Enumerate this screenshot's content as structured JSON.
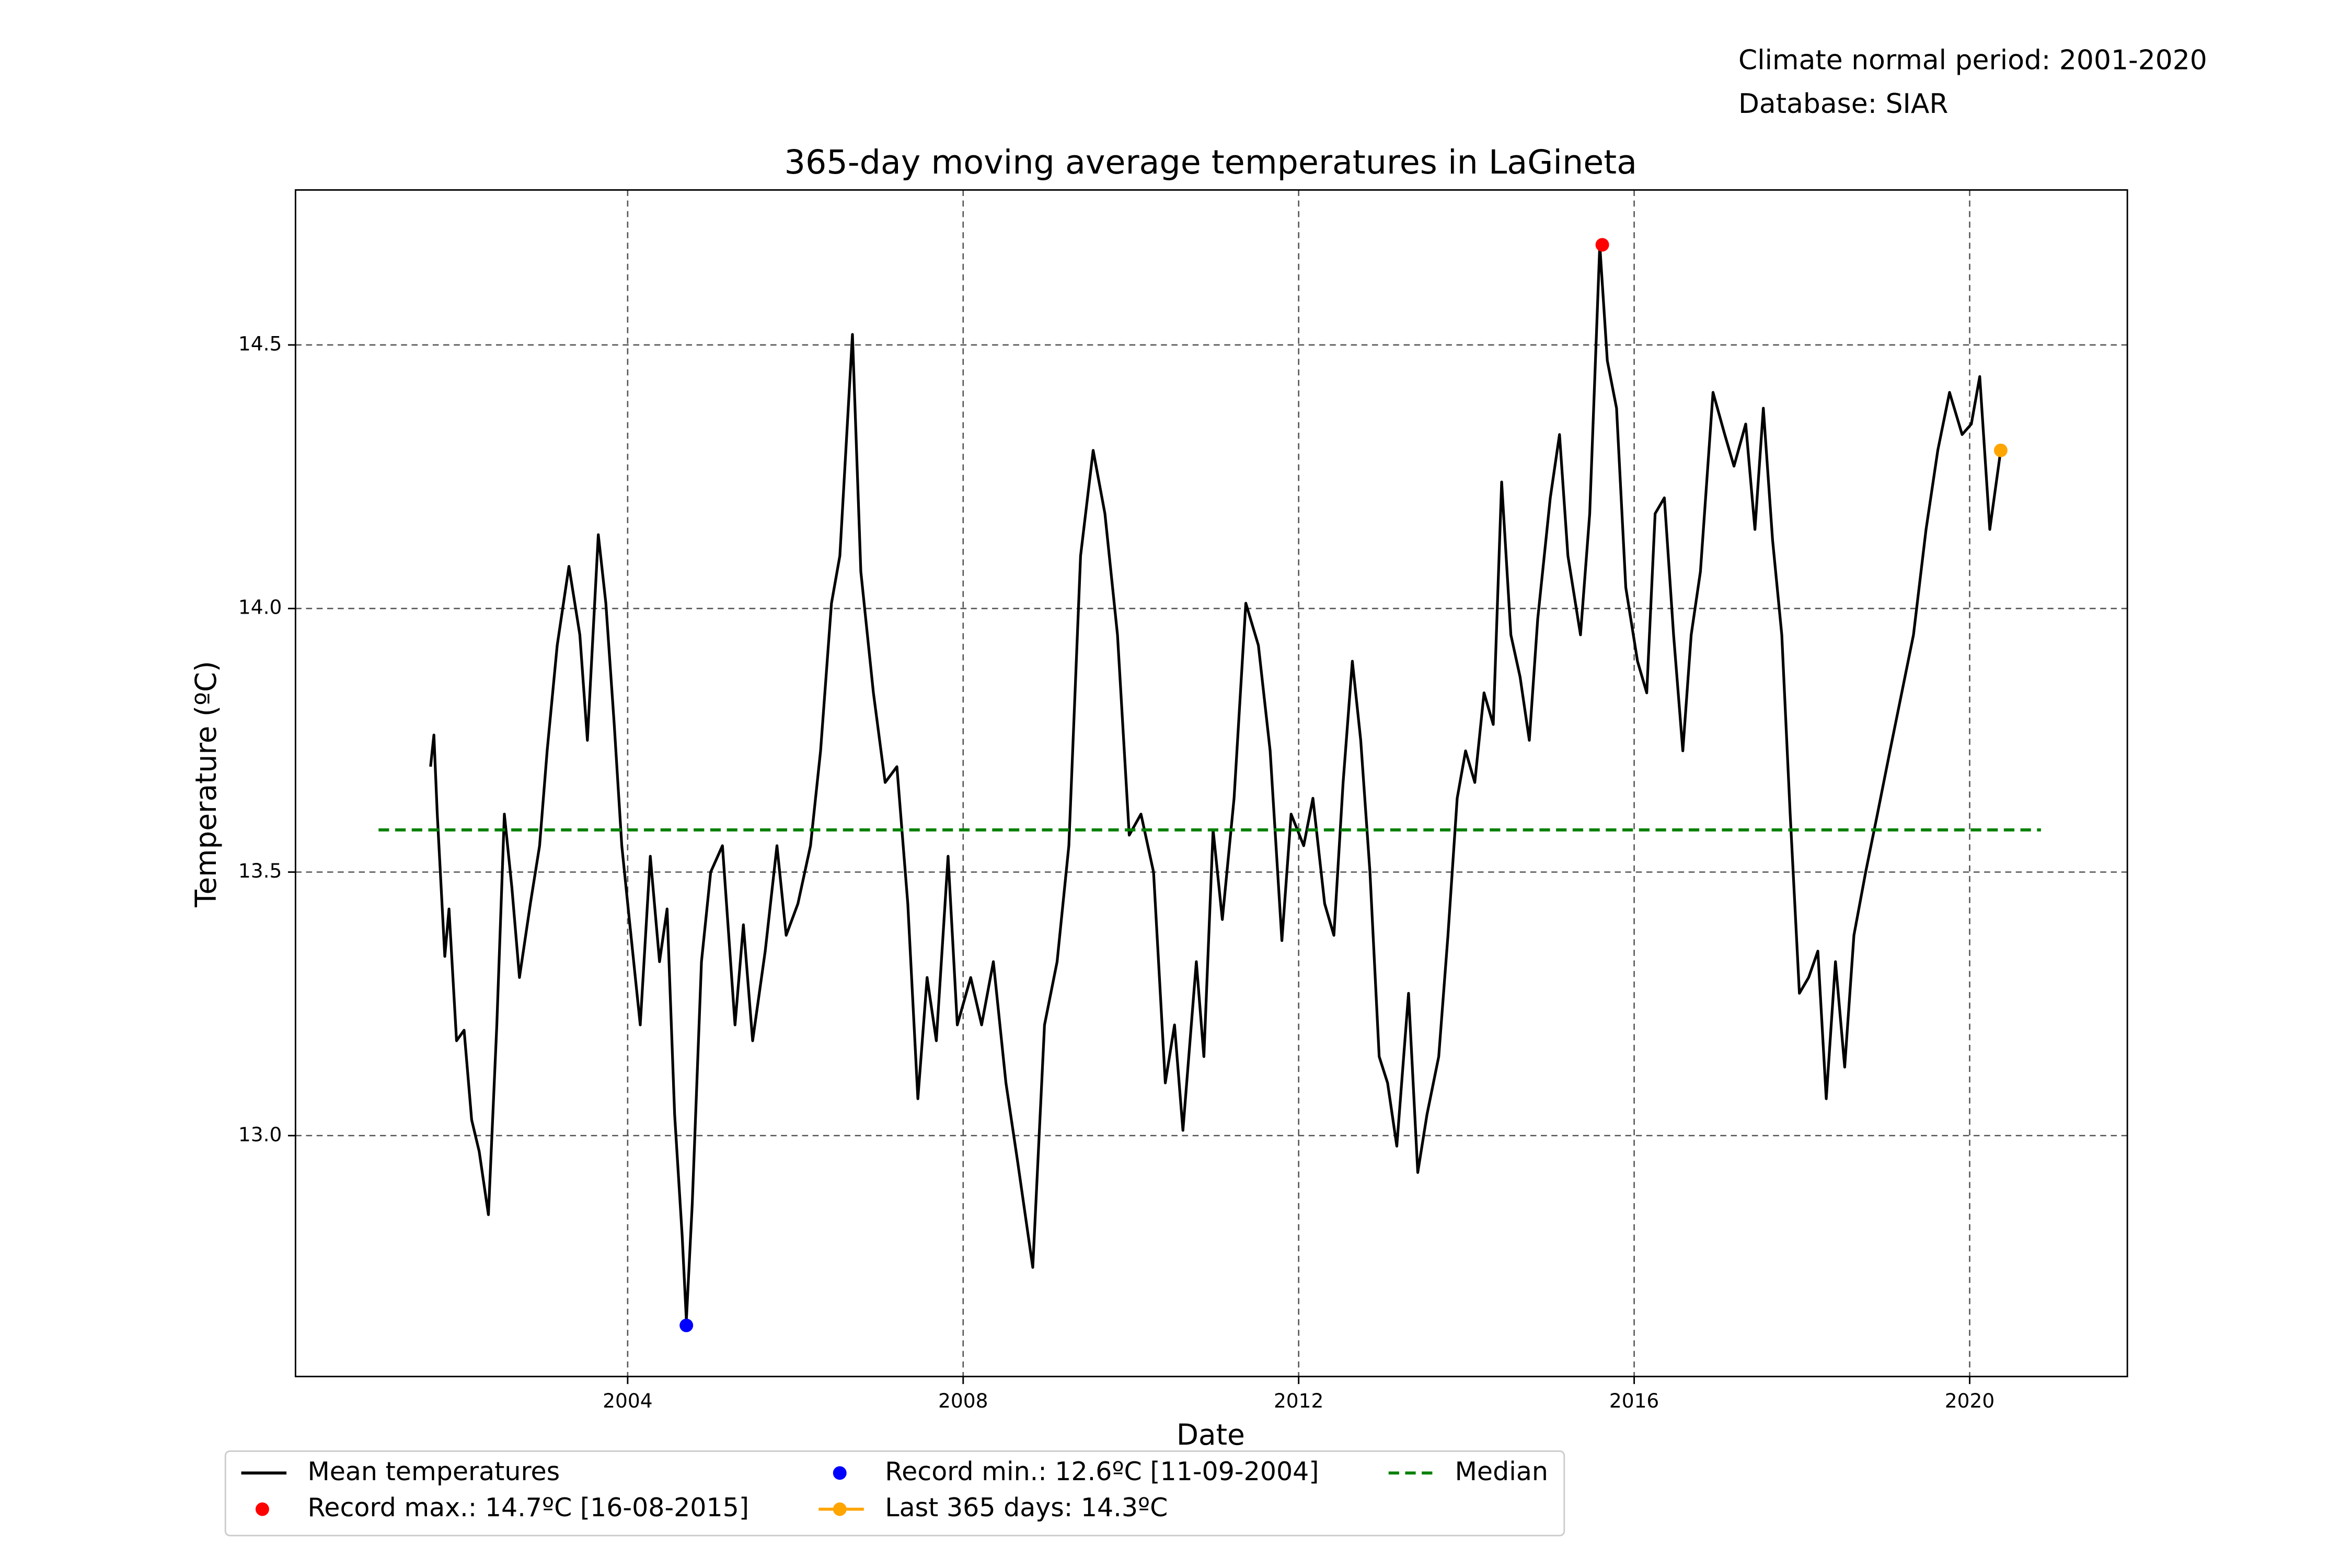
{
  "chart_data": {
    "type": "line",
    "title": "365-day moving average temperatures in LaGineta",
    "annotations": [
      "Climate normal period: 2001-2020",
      "Database: SIAR"
    ],
    "xlabel": "Date",
    "ylabel": "Temperature (ºC)",
    "xlim": [
      2000.04,
      2021.88
    ],
    "xticks": [
      2004,
      2008,
      2012,
      2016,
      2020
    ],
    "ylim": [
      12.543,
      14.794
    ],
    "yticks": [
      {
        "value": 13,
        "label": "13.0"
      },
      13.5,
      {
        "value": 14,
        "label": "14.0"
      },
      14.5
    ],
    "grid": true,
    "x": [
      2001.65,
      2001.69,
      2001.73,
      2001.82,
      2001.87,
      2001.96,
      2002.05,
      2002.14,
      2002.23,
      2002.34,
      2002.44,
      2002.53,
      2002.62,
      2002.71,
      2002.84,
      2002.95,
      2003.04,
      2003.16,
      2003.3,
      2003.43,
      2003.52,
      2003.65,
      2003.74,
      2003.84,
      2003.93,
      2004.02,
      2004.15,
      2004.27,
      2004.38,
      2004.47,
      2004.56,
      2004.65,
      2004.7,
      2004.77,
      2004.88,
      2004.99,
      2005.13,
      2005.28,
      2005.38,
      2005.49,
      2005.64,
      2005.78,
      2005.89,
      2006.03,
      2006.18,
      2006.3,
      2006.43,
      2006.53,
      2006.68,
      2006.78,
      2006.93,
      2007.07,
      2007.21,
      2007.34,
      2007.46,
      2007.57,
      2007.68,
      2007.82,
      2007.93,
      2008.09,
      2008.22,
      2008.36,
      2008.51,
      2008.65,
      2008.83,
      2008.97,
      2009.12,
      2009.26,
      2009.4,
      2009.55,
      2009.69,
      2009.84,
      2009.98,
      2010.12,
      2010.27,
      2010.41,
      2010.52,
      2010.62,
      2010.78,
      2010.87,
      2010.98,
      2011.09,
      2011.23,
      2011.37,
      2011.52,
      2011.66,
      2011.8,
      2011.91,
      2012.06,
      2012.17,
      2012.31,
      2012.42,
      2012.53,
      2012.64,
      2012.74,
      2012.85,
      2012.96,
      2013.06,
      2013.17,
      2013.31,
      2013.42,
      2013.53,
      2013.67,
      2013.78,
      2013.89,
      2013.99,
      2014.1,
      2014.21,
      2014.32,
      2014.42,
      2014.53,
      2014.64,
      2014.75,
      2014.85,
      2015.0,
      2015.11,
      2015.21,
      2015.36,
      2015.47,
      2015.59,
      2015.68,
      2015.79,
      2015.9,
      2016.04,
      2016.15,
      2016.25,
      2016.36,
      2016.47,
      2016.58,
      2016.68,
      2016.79,
      2016.94,
      2017.08,
      2017.19,
      2017.33,
      2017.44,
      2017.54,
      2017.65,
      2017.76,
      2017.86,
      2017.97,
      2018.08,
      2018.19,
      2018.29,
      2018.4,
      2018.51,
      2018.62,
      2018.76,
      2018.9,
      2019.05,
      2019.19,
      2019.33,
      2019.48,
      2019.62,
      2019.76,
      2019.91,
      2020.02,
      2020.12,
      2020.24,
      2020.37
    ],
    "series": [
      {
        "name": "Mean temperatures",
        "kind": "line",
        "color": "#000000",
        "values": [
          13.7,
          13.76,
          13.61,
          13.34,
          13.43,
          13.18,
          13.2,
          13.03,
          12.97,
          12.85,
          13.21,
          13.61,
          13.47,
          13.3,
          13.44,
          13.55,
          13.73,
          13.93,
          14.08,
          13.95,
          13.75,
          14.14,
          14.01,
          13.78,
          13.55,
          13.41,
          13.21,
          13.53,
          13.33,
          13.43,
          13.04,
          12.81,
          12.65,
          12.87,
          13.33,
          13.5,
          13.55,
          13.21,
          13.4,
          13.18,
          13.35,
          13.55,
          13.38,
          13.44,
          13.55,
          13.73,
          14.01,
          14.1,
          14.52,
          14.07,
          13.84,
          13.67,
          13.7,
          13.44,
          13.07,
          13.3,
          13.18,
          13.53,
          13.21,
          13.3,
          13.21,
          13.33,
          13.1,
          12.95,
          12.75,
          13.21,
          13.33,
          13.55,
          14.1,
          14.3,
          14.18,
          13.95,
          13.57,
          13.61,
          13.5,
          13.1,
          13.21,
          13.01,
          13.33,
          13.15,
          13.58,
          13.41,
          13.64,
          14.01,
          13.93,
          13.73,
          13.37,
          13.61,
          13.55,
          13.64,
          13.44,
          13.38,
          13.67,
          13.9,
          13.75,
          13.5,
          13.15,
          13.1,
          12.98,
          13.27,
          12.93,
          13.04,
          13.15,
          13.38,
          13.64,
          13.73,
          13.67,
          13.84,
          13.78,
          14.24,
          13.95,
          13.87,
          13.75,
          13.98,
          14.21,
          14.33,
          14.1,
          13.95,
          14.18,
          14.69,
          14.47,
          14.38,
          14.04,
          13.9,
          13.84,
          14.18,
          14.21,
          13.95,
          13.73,
          13.95,
          14.07,
          14.41,
          14.33,
          14.27,
          14.35,
          14.15,
          14.38,
          14.13,
          13.95,
          13.61,
          13.27,
          13.3,
          13.35,
          13.07,
          13.33,
          13.13,
          13.38,
          13.5,
          13.61,
          13.73,
          13.84,
          13.95,
          14.15,
          14.3,
          14.41,
          14.33,
          14.35,
          14.44,
          14.15,
          14.3
        ]
      },
      {
        "name": "Record max.: 14.7ºC [16-08-2015]",
        "kind": "point",
        "color": "#ff0000",
        "x": 2015.62,
        "value": 14.69
      },
      {
        "name": "Record min.: 12.6ºC [11-09-2004]",
        "kind": "point",
        "color": "#0000ff",
        "x": 2004.7,
        "value": 12.64
      },
      {
        "name": "Last 365 days: 14.3ºC",
        "kind": "point-line",
        "color": "#ffa500",
        "x": 2020.37,
        "value": 14.3
      },
      {
        "name": "Median",
        "kind": "hline",
        "color": "#008000",
        "x": [
          2001.03,
          2020.85
        ],
        "value": 13.58
      }
    ]
  }
}
